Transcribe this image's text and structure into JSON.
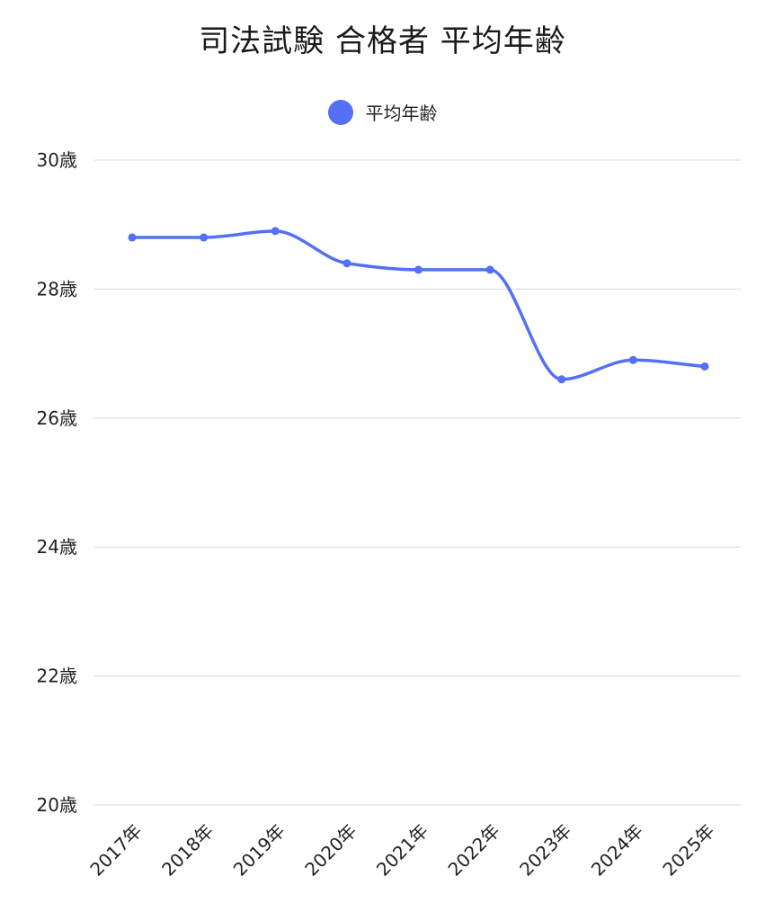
{
  "chart_data": {
    "type": "line",
    "title": "司法試験 合格者 平均年齢",
    "categories": [
      "2017年",
      "2018年",
      "2019年",
      "2020年",
      "2021年",
      "2022年",
      "2023年",
      "2024年",
      "2025年"
    ],
    "series": [
      {
        "name": "平均年齢",
        "values": [
          28.8,
          28.8,
          28.9,
          28.4,
          28.3,
          28.3,
          26.6,
          26.9,
          26.8
        ]
      }
    ],
    "y_ticks": [
      "20歳",
      "22歳",
      "24歳",
      "26歳",
      "28歳",
      "30歳"
    ],
    "ylim": [
      20,
      30
    ],
    "y_unit": "歳",
    "grid": true,
    "legend_position": "top-center",
    "line_color": "#5470f5",
    "grid_color": "#d9d9d9"
  }
}
